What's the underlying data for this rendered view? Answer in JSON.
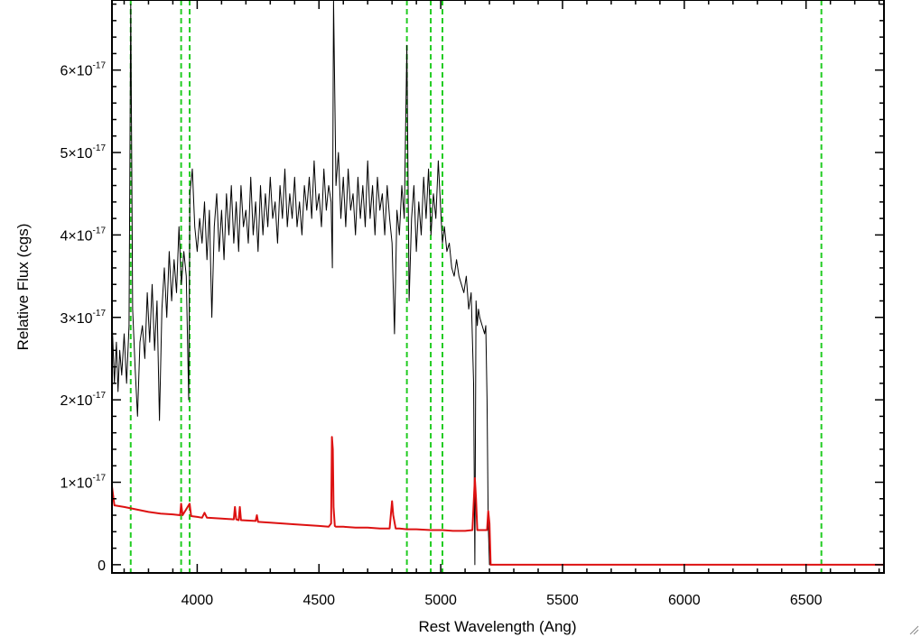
{
  "chart_data": {
    "type": "line",
    "title": "",
    "xlabel": "Rest Wavelength (Ang)",
    "ylabel": "Relative Flux (cgs)",
    "xlim": [
      3650,
      6820
    ],
    "ylim": [
      -1e-18,
      6.85e-17
    ],
    "x_ticks": [
      {
        "value": 4000,
        "label": "4000"
      },
      {
        "value": 4500,
        "label": "4500"
      },
      {
        "value": 5000,
        "label": "5000"
      },
      {
        "value": 5500,
        "label": "5500"
      },
      {
        "value": 6000,
        "label": "6000"
      },
      {
        "value": 6500,
        "label": "6500"
      }
    ],
    "y_ticks": [
      {
        "value": 0,
        "mantissa": "0",
        "exponent": ""
      },
      {
        "value": 1e-17,
        "mantissa": "1×10",
        "exponent": "-17"
      },
      {
        "value": 2e-17,
        "mantissa": "2×10",
        "exponent": "-17"
      },
      {
        "value": 3e-17,
        "mantissa": "3×10",
        "exponent": "-17"
      },
      {
        "value": 4e-17,
        "mantissa": "4×10",
        "exponent": "-17"
      },
      {
        "value": 5e-17,
        "mantissa": "5×10",
        "exponent": "-17"
      },
      {
        "value": 6e-17,
        "mantissa": "6×10",
        "exponent": "-17"
      }
    ],
    "grid": false,
    "reference_lines": {
      "color": "#22cc22",
      "style": "dashed",
      "x": [
        3727,
        3934,
        3969,
        4861,
        4959,
        5007,
        6563
      ]
    },
    "series": [
      {
        "color": "#000000",
        "x": [
          3650,
          3660,
          3668,
          3675,
          3682,
          3690,
          3700,
          3710,
          3720,
          3727,
          3735,
          3745,
          3755,
          3765,
          3775,
          3785,
          3795,
          3805,
          3815,
          3825,
          3835,
          3845,
          3855,
          3865,
          3875,
          3885,
          3895,
          3905,
          3915,
          3925,
          3935,
          3945,
          3955,
          3965,
          3970,
          3980,
          3990,
          4000,
          4010,
          4020,
          4030,
          4040,
          4050,
          4060,
          4070,
          4080,
          4090,
          4100,
          4110,
          4120,
          4130,
          4140,
          4150,
          4160,
          4170,
          4180,
          4190,
          4200,
          4210,
          4220,
          4230,
          4240,
          4250,
          4260,
          4270,
          4280,
          4290,
          4300,
          4310,
          4320,
          4330,
          4340,
          4350,
          4360,
          4370,
          4380,
          4390,
          4400,
          4410,
          4420,
          4430,
          4440,
          4450,
          4460,
          4470,
          4480,
          4490,
          4500,
          4510,
          4520,
          4530,
          4540,
          4550,
          4555,
          4560,
          4570,
          4580,
          4590,
          4600,
          4610,
          4620,
          4630,
          4640,
          4650,
          4660,
          4670,
          4680,
          4690,
          4700,
          4710,
          4720,
          4730,
          4740,
          4750,
          4760,
          4770,
          4780,
          4790,
          4800,
          4810,
          4820,
          4830,
          4840,
          4850,
          4861,
          4870,
          4880,
          4890,
          4900,
          4910,
          4920,
          4930,
          4940,
          4950,
          4960,
          4970,
          4980,
          4990,
          5000,
          5007,
          5015,
          5025,
          5035,
          5045,
          5055,
          5065,
          5075,
          5085,
          5095,
          5105,
          5115,
          5125,
          5135,
          5140,
          5145,
          5150,
          5155,
          5160,
          5170,
          5180,
          5185,
          5190,
          5195,
          5200,
          5205,
          5300,
          5500,
          6000,
          6500,
          6820
        ],
        "y": [
          3e-17,
          2.2e-17,
          2.7e-17,
          2.1e-17,
          2.6e-17,
          2.3e-17,
          2.8e-17,
          2.2e-17,
          2.9e-17,
          6.8e-17,
          3.1e-17,
          2.4e-17,
          1.8e-17,
          2.7e-17,
          2.9e-17,
          2.5e-17,
          3.3e-17,
          2.7e-17,
          3.4e-17,
          2.6e-17,
          3.2e-17,
          1.75e-17,
          3.1e-17,
          3.6e-17,
          3e-17,
          3.8e-17,
          3.2e-17,
          3.7e-17,
          3.3e-17,
          4.1e-17,
          3.4e-17,
          3.8e-17,
          3.5e-17,
          2e-17,
          4.5e-17,
          4.8e-17,
          4.1e-17,
          3.8e-17,
          4.2e-17,
          3.9e-17,
          4.4e-17,
          3.7e-17,
          4.3e-17,
          3e-17,
          4.1e-17,
          4.5e-17,
          3.8e-17,
          4.3e-17,
          3.7e-17,
          4.5e-17,
          4e-17,
          4.6e-17,
          3.9e-17,
          4.4e-17,
          3.8e-17,
          4.6e-17,
          4.1e-17,
          4.3e-17,
          3.9e-17,
          4.7e-17,
          4e-17,
          4.4e-17,
          3.8e-17,
          4.6e-17,
          4e-17,
          4.5e-17,
          4.1e-17,
          4.7e-17,
          4.2e-17,
          4.4e-17,
          3.9e-17,
          4.6e-17,
          4.2e-17,
          4.8e-17,
          4.1e-17,
          4.5e-17,
          4.2e-17,
          4.7e-17,
          4.1e-17,
          4.4e-17,
          4e-17,
          4.6e-17,
          4.3e-17,
          4.7e-17,
          4.2e-17,
          4.9e-17,
          4.3e-17,
          4.5e-17,
          4.1e-17,
          4.8e-17,
          4.3e-17,
          4.6e-17,
          4.4e-17,
          3.6e-17,
          6.85e-17,
          4.6e-17,
          5e-17,
          4.2e-17,
          4.7e-17,
          4.1e-17,
          4.8e-17,
          4.3e-17,
          4.5e-17,
          4e-17,
          4.7e-17,
          4.2e-17,
          4.6e-17,
          4.1e-17,
          4.9e-17,
          4.2e-17,
          4.6e-17,
          4e-17,
          4.7e-17,
          4.3e-17,
          4.5e-17,
          4e-17,
          4.6e-17,
          4.2e-17,
          3.9e-17,
          2.8e-17,
          4.3e-17,
          4e-17,
          4.6e-17,
          4.2e-17,
          6.3e-17,
          3.2e-17,
          4.2e-17,
          4.6e-17,
          3.8e-17,
          4.4e-17,
          4e-17,
          4.7e-17,
          4.2e-17,
          4.8e-17,
          4e-17,
          4.5e-17,
          4.2e-17,
          4.9e-17,
          4.3e-17,
          3.9e-17,
          4.1e-17,
          3.8e-17,
          3.9e-17,
          3.6e-17,
          3.5e-17,
          3.7e-17,
          3.5e-17,
          3.4e-17,
          3.3e-17,
          3.5e-17,
          3.1e-17,
          3.3e-17,
          2.2e-17,
          0.0,
          3.2e-17,
          2.9e-17,
          3.1e-17,
          3e-17,
          2.9e-17,
          2.8e-17,
          2.9e-17,
          2e-17,
          5e-18,
          0.0,
          0.0,
          0.0,
          0.0,
          0.0,
          0.0,
          0.0
        ]
      },
      {
        "color": "#dd1111",
        "x": [
          3650,
          3660,
          3700,
          3750,
          3800,
          3850,
          3900,
          3930,
          3934,
          3940,
          3969,
          3975,
          4000,
          4020,
          4030,
          4040,
          4100,
          4150,
          4155,
          4160,
          4170,
          4175,
          4180,
          4240,
          4245,
          4250,
          4300,
          4400,
          4450,
          4500,
          4540,
          4550,
          4553,
          4557,
          4560,
          4565,
          4570,
          4600,
          4650,
          4700,
          4750,
          4790,
          4800,
          4805,
          4815,
          4830,
          4861,
          4900,
          4959,
          5007,
          5050,
          5100,
          5130,
          5140,
          5145,
          5150,
          5160,
          5180,
          5190,
          5195,
          5200,
          5205,
          5300,
          5500,
          6000,
          6500,
          6820
        ],
        "y": [
          9.5e-18,
          7.2e-18,
          7e-18,
          6.7e-18,
          6.4e-18,
          6.2e-18,
          6.1e-18,
          6e-18,
          7.4e-18,
          6e-18,
          7.4e-18,
          5.9e-18,
          5.8e-18,
          5.7e-18,
          6.3e-18,
          5.7e-18,
          5.6e-18,
          5.5e-18,
          7e-18,
          5.5e-18,
          5.4e-18,
          7e-18,
          5.4e-18,
          5.3e-18,
          6e-18,
          5.2e-18,
          5.1e-18,
          4.9e-18,
          4.8e-18,
          4.7e-18,
          4.6e-18,
          5e-18,
          1.55e-17,
          1.4e-17,
          7e-18,
          4.7e-18,
          4.6e-18,
          4.6e-18,
          4.5e-18,
          4.5e-18,
          4.4e-18,
          4.4e-18,
          7.7e-18,
          6e-18,
          4.4e-18,
          4.4e-18,
          4.3e-18,
          4.3e-18,
          4.2e-18,
          4.2e-18,
          4.1e-18,
          4.1e-18,
          4.2e-18,
          1.05e-17,
          8e-18,
          4.2e-18,
          4.2e-18,
          4.2e-18,
          4.2e-18,
          6.5e-18,
          5e-18,
          0.0,
          0.0,
          0.0,
          0.0,
          0.0,
          0.0
        ]
      }
    ]
  }
}
